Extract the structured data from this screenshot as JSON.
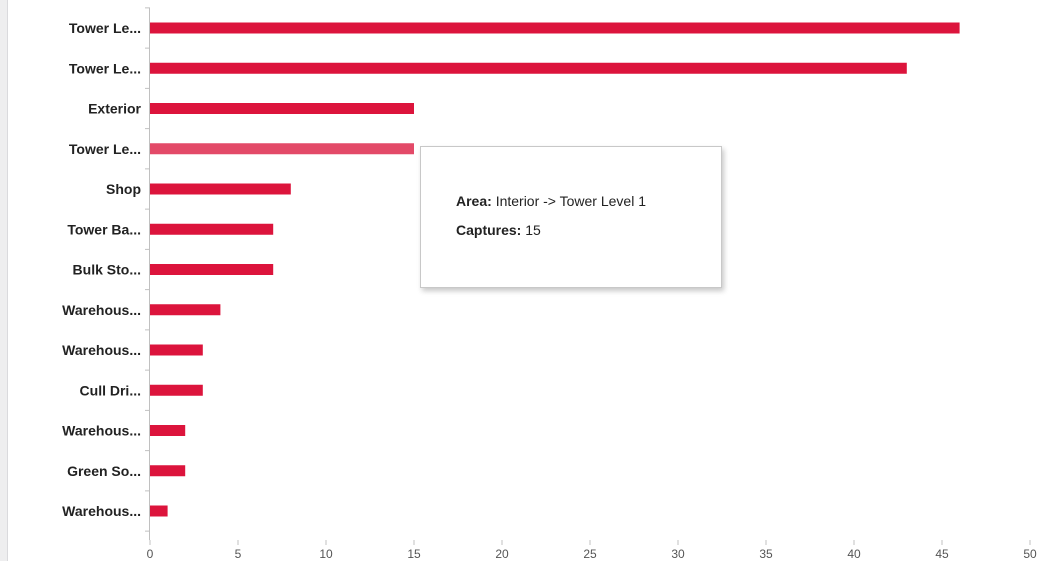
{
  "chart_data": {
    "type": "bar",
    "orientation": "horizontal",
    "categories": [
      "Tower Le...",
      "Tower Le...",
      "Exterior",
      "Tower Le...",
      "Shop",
      "Tower Ba...",
      "Bulk Sto...",
      "Warehous...",
      "Warehous...",
      "Cull Dri...",
      "Warehous...",
      "Green So...",
      "Warehous..."
    ],
    "values": [
      46,
      43,
      15,
      15,
      8,
      7,
      7,
      4,
      3,
      3,
      2,
      2,
      1
    ],
    "highlighted_index": 3,
    "xlim": [
      0,
      50
    ],
    "xticks": [
      0,
      5,
      10,
      15,
      20,
      25,
      30,
      35,
      40,
      45,
      50
    ],
    "grid": false,
    "bar_color": "#dc143c",
    "highlight_color": "#e34a68"
  },
  "tooltip": {
    "area_key": "Area:",
    "area_value": "Interior -> Tower Level 1",
    "captures_key": "Captures:",
    "captures_value": "15"
  }
}
